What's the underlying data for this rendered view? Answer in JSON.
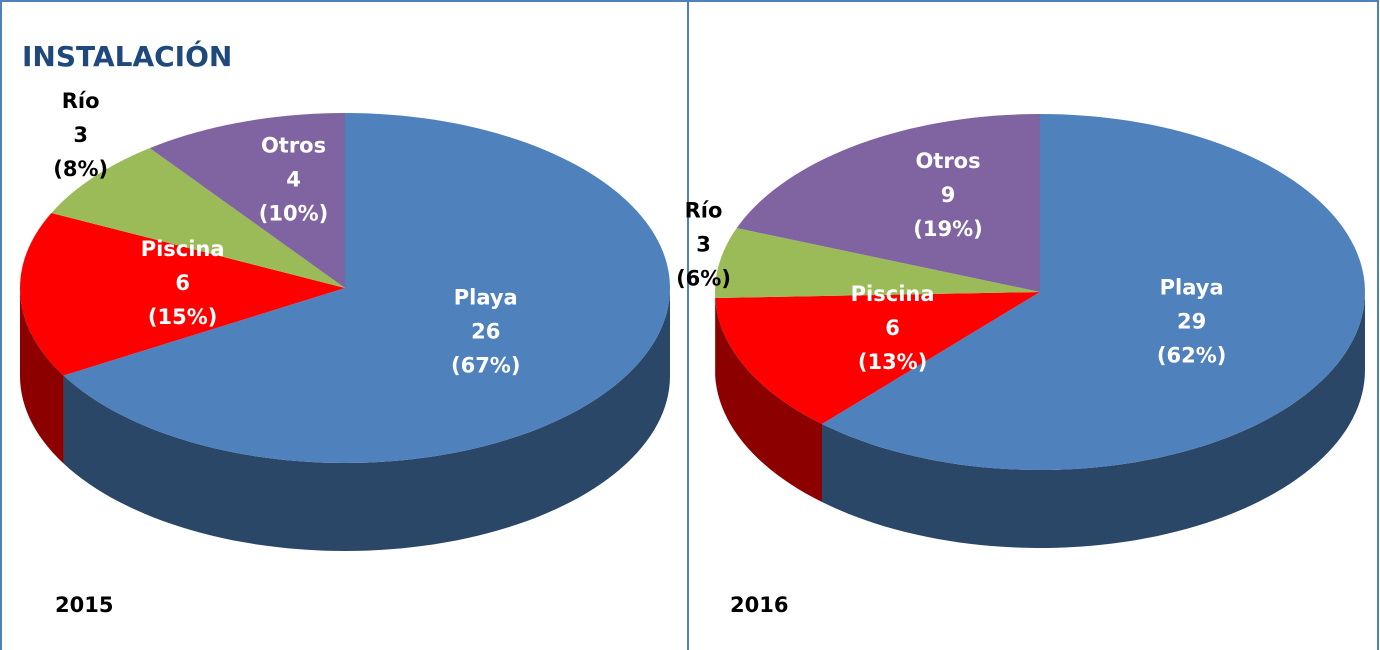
{
  "title": "INSTALACIÓN",
  "chart_data": [
    {
      "type": "pie",
      "label": "2015",
      "categories": [
        "Playa",
        "Piscina",
        "Río",
        "Otros"
      ],
      "values": [
        26,
        6,
        3,
        4
      ],
      "percent_labels": [
        "(67%)",
        "(15%)",
        "(8%)",
        "(10%)"
      ],
      "colors": [
        "#4f81bd",
        "#ff0000",
        "#9bbb59",
        "#8064a2"
      ]
    },
    {
      "type": "pie",
      "label": "2016",
      "categories": [
        "Playa",
        "Piscina",
        "Río",
        "Otros"
      ],
      "values": [
        29,
        6,
        3,
        9
      ],
      "percent_labels": [
        "(62%)",
        "(13%)",
        "(6%)",
        "(19%)"
      ],
      "colors": [
        "#4f81bd",
        "#ff0000",
        "#9bbb59",
        "#8064a2"
      ]
    }
  ]
}
